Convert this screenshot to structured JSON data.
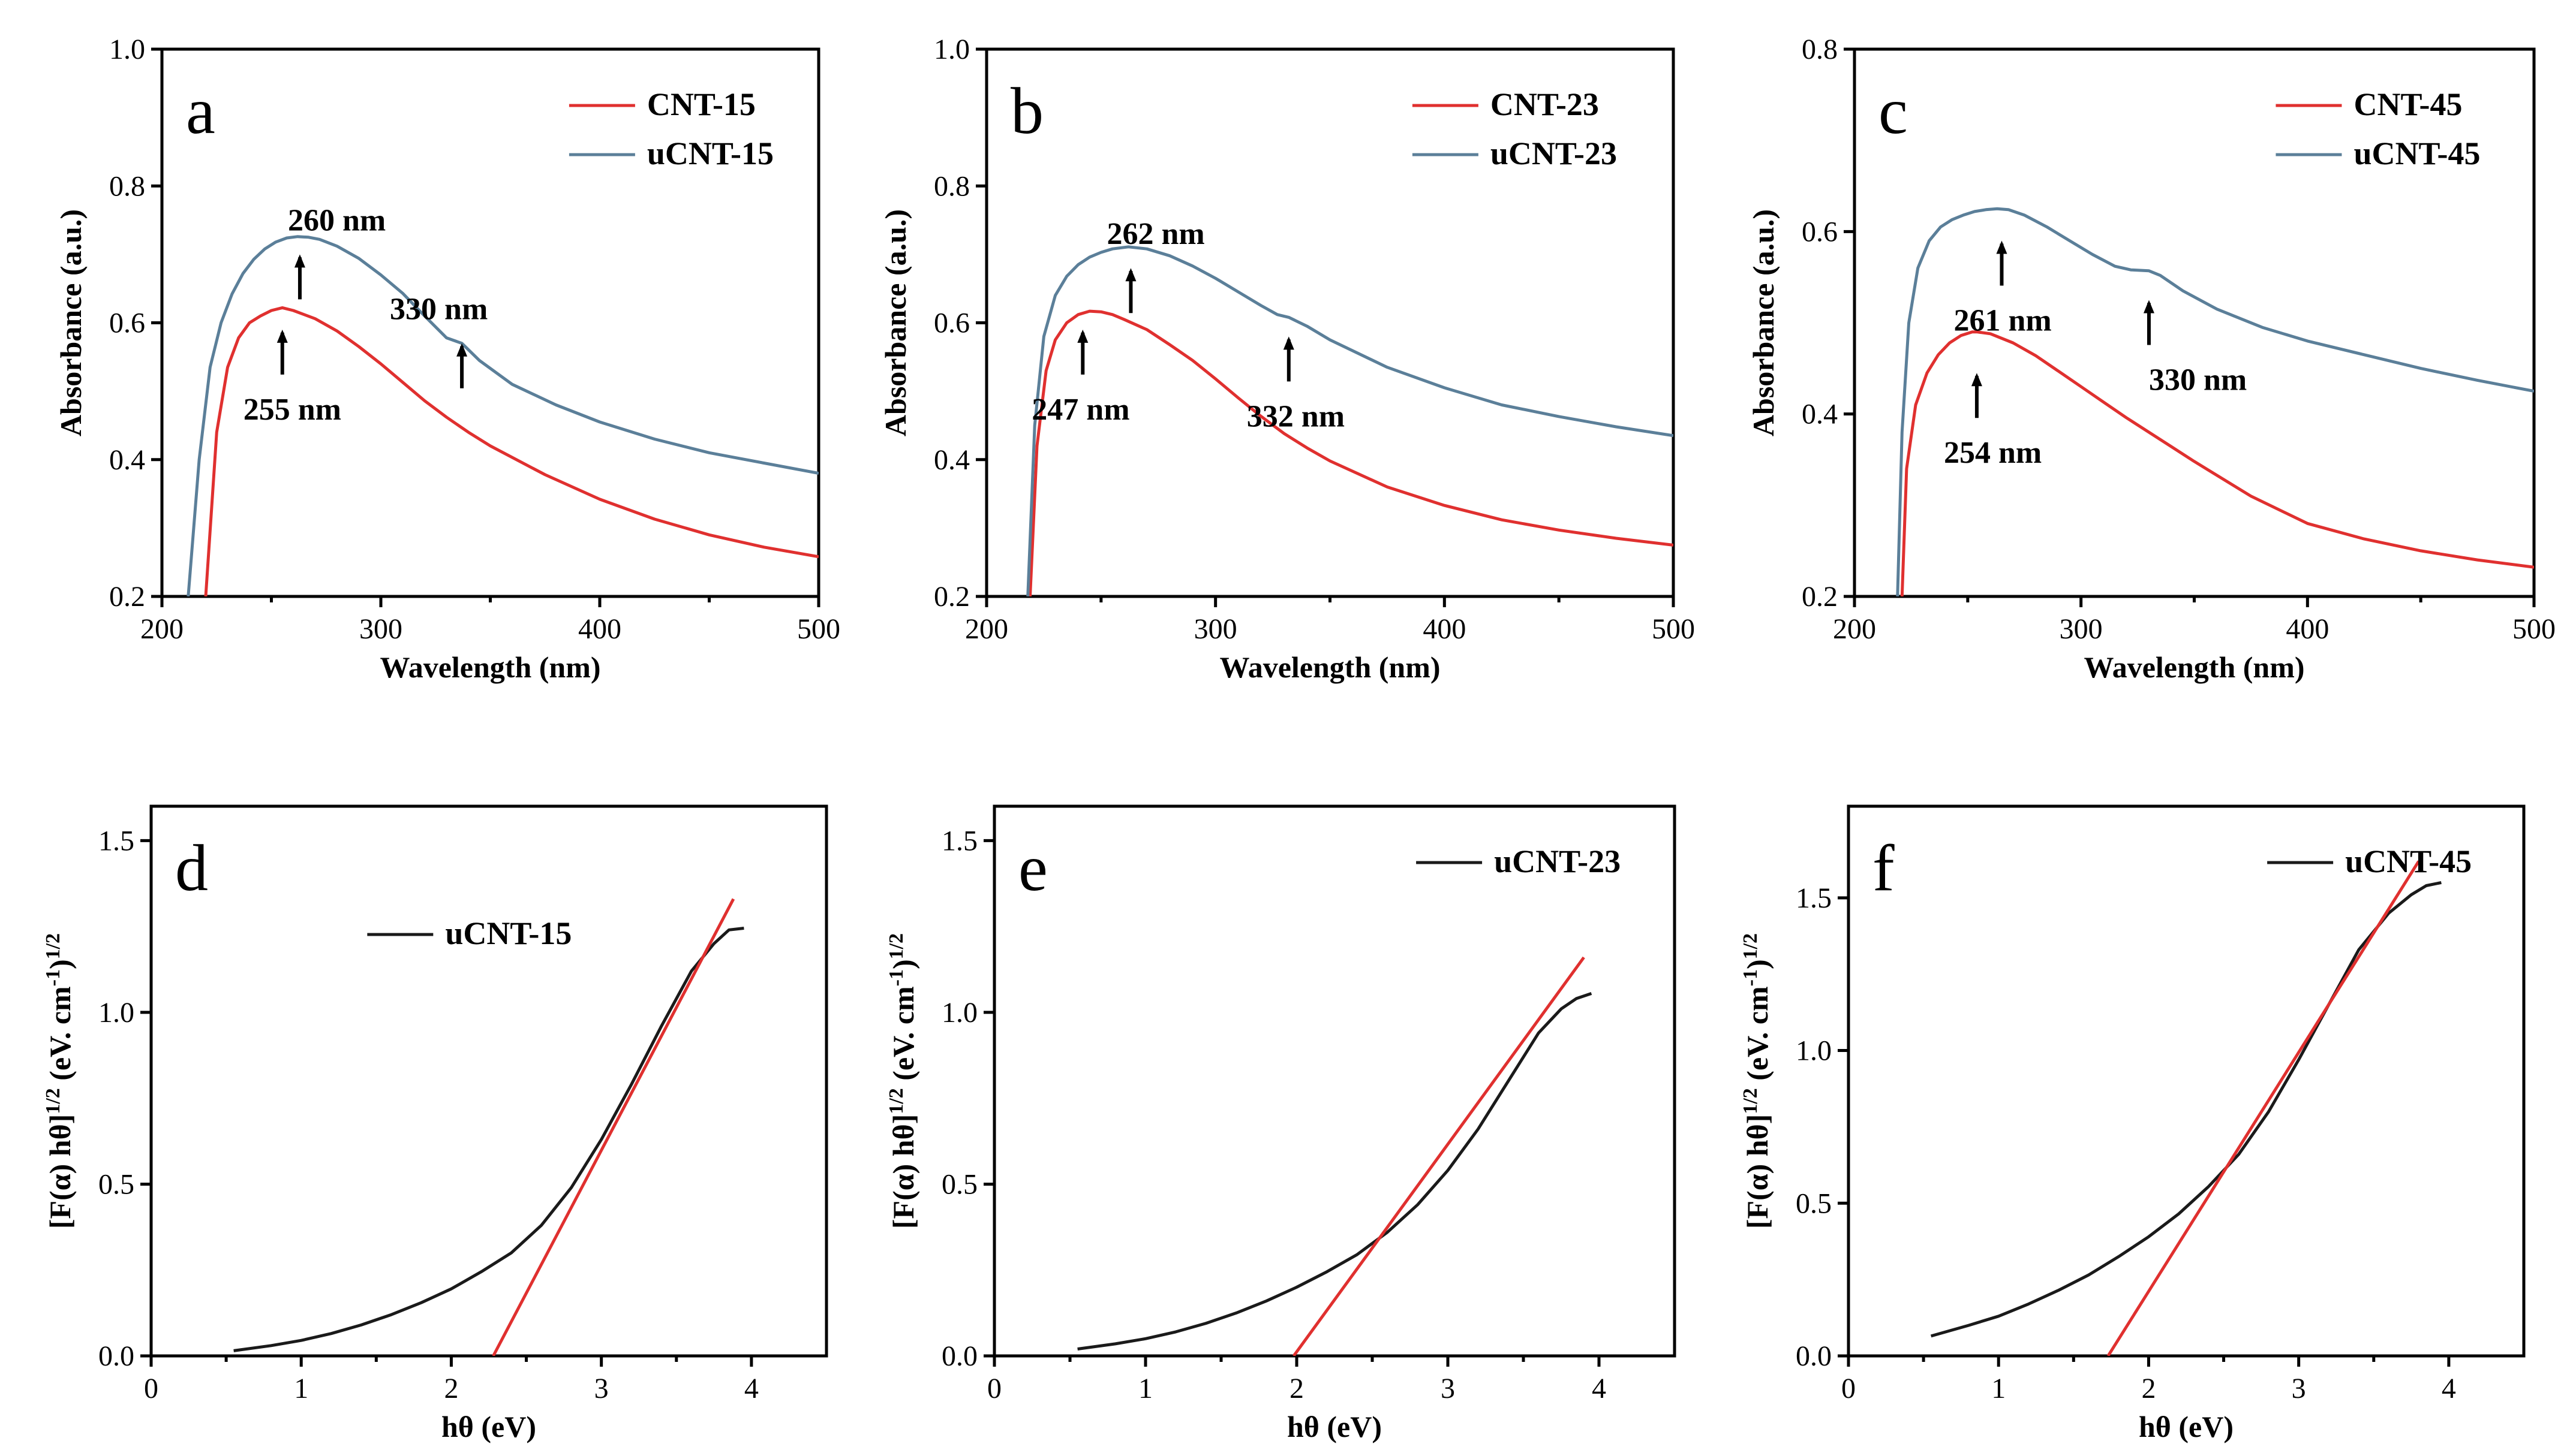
{
  "chart_data": [
    {
      "type": "line",
      "panel": "a",
      "xlabel": "Wavelength (nm)",
      "ylabel": "Absorbance (a.u.)",
      "xlim": [
        200,
        500
      ],
      "ylim": [
        0.2,
        1.0
      ],
      "xticks": [
        200,
        300,
        400,
        500
      ],
      "yticks": [
        0.2,
        0.4,
        0.6,
        0.8,
        1.0
      ],
      "legend": "top-right",
      "series": [
        {
          "name": "CNT-15",
          "color": "#e0302f",
          "x": [
            220,
            225,
            230,
            235,
            240,
            245,
            250,
            255,
            260,
            270,
            280,
            290,
            300,
            310,
            320,
            330,
            340,
            350,
            375,
            400,
            425,
            450,
            475,
            500
          ],
          "y": [
            0.2,
            0.44,
            0.535,
            0.578,
            0.6,
            0.61,
            0.618,
            0.622,
            0.618,
            0.606,
            0.588,
            0.565,
            0.54,
            0.513,
            0.486,
            0.462,
            0.44,
            0.42,
            0.378,
            0.342,
            0.313,
            0.29,
            0.272,
            0.258
          ]
        },
        {
          "name": "uCNT-15",
          "color": "#5b7f99",
          "x": [
            212,
            217,
            222,
            227,
            232,
            237,
            242,
            247,
            252,
            257,
            262,
            267,
            272,
            280,
            290,
            300,
            310,
            320,
            330,
            337,
            345,
            360,
            380,
            400,
            425,
            450,
            475,
            500
          ],
          "y": [
            0.2,
            0.4,
            0.535,
            0.6,
            0.642,
            0.672,
            0.693,
            0.708,
            0.718,
            0.724,
            0.726,
            0.725,
            0.722,
            0.712,
            0.694,
            0.67,
            0.643,
            0.61,
            0.578,
            0.57,
            0.545,
            0.51,
            0.48,
            0.455,
            0.43,
            0.41,
            0.395,
            0.38
          ]
        }
      ],
      "annotations": [
        "260 nm",
        "330 nm",
        "255 nm"
      ]
    },
    {
      "type": "line",
      "panel": "b",
      "xlabel": "Wavelength (nm)",
      "ylabel": "Absorbance (a.u.)",
      "xlim": [
        200,
        500
      ],
      "ylim": [
        0.2,
        1.0
      ],
      "xticks": [
        200,
        300,
        400,
        500
      ],
      "yticks": [
        0.2,
        0.4,
        0.6,
        0.8,
        1.0
      ],
      "legend": "top-right",
      "series": [
        {
          "name": "CNT-23",
          "color": "#e0302f",
          "x": [
            219,
            222,
            226,
            230,
            235,
            240,
            245,
            250,
            255,
            260,
            270,
            280,
            290,
            300,
            310,
            320,
            330,
            340,
            350,
            375,
            400,
            425,
            450,
            475,
            500
          ],
          "y": [
            0.2,
            0.42,
            0.53,
            0.575,
            0.6,
            0.612,
            0.617,
            0.616,
            0.612,
            0.605,
            0.59,
            0.568,
            0.545,
            0.518,
            0.49,
            0.463,
            0.438,
            0.417,
            0.398,
            0.36,
            0.333,
            0.312,
            0.297,
            0.285,
            0.275
          ]
        },
        {
          "name": "uCNT-23",
          "color": "#5b7f99",
          "x": [
            218,
            221,
            225,
            230,
            235,
            240,
            245,
            250,
            255,
            262,
            270,
            280,
            290,
            300,
            310,
            320,
            327,
            332,
            340,
            350,
            375,
            400,
            425,
            450,
            475,
            500
          ],
          "y": [
            0.2,
            0.45,
            0.58,
            0.64,
            0.668,
            0.685,
            0.696,
            0.703,
            0.708,
            0.711,
            0.708,
            0.698,
            0.683,
            0.665,
            0.645,
            0.625,
            0.612,
            0.608,
            0.595,
            0.575,
            0.535,
            0.505,
            0.48,
            0.463,
            0.448,
            0.435
          ]
        }
      ],
      "annotations": [
        "262 nm",
        "247 nm",
        "332 nm"
      ]
    },
    {
      "type": "line",
      "panel": "c",
      "xlabel": "Wavelength (nm)",
      "ylabel": "Absorbance (a.u.)",
      "xlim": [
        200,
        500
      ],
      "ylim": [
        0.2,
        0.8
      ],
      "xticks": [
        200,
        300,
        400,
        500
      ],
      "yticks": [
        0.2,
        0.4,
        0.6,
        0.8
      ],
      "legend": "top-right",
      "series": [
        {
          "name": "CNT-45",
          "color": "#e0302f",
          "x": [
            221,
            223,
            227,
            232,
            237,
            242,
            247,
            252,
            254,
            260,
            270,
            280,
            290,
            300,
            310,
            320,
            330,
            340,
            350,
            375,
            400,
            425,
            450,
            475,
            500
          ],
          "y": [
            0.2,
            0.34,
            0.41,
            0.445,
            0.465,
            0.478,
            0.486,
            0.49,
            0.49,
            0.488,
            0.478,
            0.464,
            0.447,
            0.43,
            0.413,
            0.396,
            0.38,
            0.364,
            0.348,
            0.31,
            0.28,
            0.263,
            0.25,
            0.24,
            0.232
          ]
        },
        {
          "name": "uCNT-45",
          "color": "#5b7f99",
          "x": [
            219,
            221,
            224,
            228,
            233,
            238,
            243,
            248,
            253,
            258,
            263,
            268,
            275,
            285,
            295,
            305,
            315,
            322,
            330,
            335,
            345,
            360,
            380,
            400,
            425,
            450,
            475,
            500
          ],
          "y": [
            0.2,
            0.38,
            0.5,
            0.56,
            0.59,
            0.605,
            0.613,
            0.618,
            0.622,
            0.624,
            0.625,
            0.624,
            0.618,
            0.605,
            0.59,
            0.575,
            0.562,
            0.558,
            0.557,
            0.552,
            0.535,
            0.515,
            0.495,
            0.48,
            0.465,
            0.45,
            0.437,
            0.425
          ]
        }
      ],
      "annotations": [
        "261 nm",
        "330 nm",
        "254 nm"
      ]
    },
    {
      "type": "line",
      "panel": "d",
      "xlabel": "hθ (eV)",
      "ylabel": "[F(α) hθ]1/2 (eV. cm-1)1/2",
      "xlim": [
        0,
        4.5
      ],
      "ylim": [
        0,
        1.6
      ],
      "xticks": [
        0,
        1,
        2,
        3,
        4
      ],
      "yticks": [
        0.0,
        0.5,
        1.0,
        1.5
      ],
      "legend": "top-left",
      "series": [
        {
          "name": "uCNT-15",
          "color": "#1a1a1a",
          "x": [
            0.55,
            0.8,
            1.0,
            1.2,
            1.4,
            1.6,
            1.8,
            2.0,
            2.2,
            2.4,
            2.6,
            2.8,
            3.0,
            3.2,
            3.4,
            3.6,
            3.75,
            3.85,
            3.95
          ],
          "y": [
            0.015,
            0.03,
            0.045,
            0.065,
            0.09,
            0.12,
            0.155,
            0.195,
            0.245,
            0.3,
            0.38,
            0.49,
            0.63,
            0.79,
            0.96,
            1.12,
            1.2,
            1.24,
            1.245
          ]
        },
        {
          "name": "linear fit",
          "color": "#e0302f",
          "x": [
            2.28,
            3.88
          ],
          "y": [
            0.0,
            1.33
          ]
        }
      ]
    },
    {
      "type": "line",
      "panel": "e",
      "xlabel": "hθ (eV)",
      "ylabel": "[F(α) hθ]1/2 (eV. cm-1)1/2",
      "xlim": [
        0,
        4.5
      ],
      "ylim": [
        0,
        1.6
      ],
      "xticks": [
        0,
        1,
        2,
        3,
        4
      ],
      "yticks": [
        0.0,
        0.5,
        1.0,
        1.5
      ],
      "legend": "top-right",
      "series": [
        {
          "name": "uCNT-23",
          "color": "#1a1a1a",
          "x": [
            0.55,
            0.8,
            1.0,
            1.2,
            1.4,
            1.6,
            1.8,
            2.0,
            2.2,
            2.4,
            2.6,
            2.8,
            3.0,
            3.2,
            3.4,
            3.6,
            3.75,
            3.85,
            3.95
          ],
          "y": [
            0.02,
            0.035,
            0.05,
            0.07,
            0.095,
            0.125,
            0.16,
            0.2,
            0.245,
            0.295,
            0.36,
            0.44,
            0.54,
            0.66,
            0.8,
            0.94,
            1.01,
            1.04,
            1.055
          ]
        },
        {
          "name": "linear fit",
          "color": "#e0302f",
          "x": [
            1.98,
            3.9
          ],
          "y": [
            0.0,
            1.16
          ]
        }
      ]
    },
    {
      "type": "line",
      "panel": "f",
      "xlabel": "hθ (eV)",
      "ylabel": "[F(α) hθ]1/2 (eV. cm-1)1/2",
      "xlim": [
        0,
        4.5
      ],
      "ylim": [
        0,
        1.8
      ],
      "xticks": [
        0,
        1,
        2,
        3,
        4
      ],
      "yticks": [
        0.0,
        0.5,
        1.0,
        1.5
      ],
      "legend": "top-right",
      "series": [
        {
          "name": "uCNT-45",
          "color": "#1a1a1a",
          "x": [
            0.55,
            0.8,
            1.0,
            1.2,
            1.4,
            1.6,
            1.8,
            2.0,
            2.2,
            2.4,
            2.6,
            2.8,
            3.0,
            3.2,
            3.4,
            3.6,
            3.75,
            3.85,
            3.95
          ],
          "y": [
            0.065,
            0.1,
            0.13,
            0.17,
            0.215,
            0.265,
            0.325,
            0.39,
            0.465,
            0.555,
            0.66,
            0.8,
            0.97,
            1.15,
            1.33,
            1.45,
            1.51,
            1.54,
            1.55
          ]
        },
        {
          "name": "linear fit",
          "color": "#e0302f",
          "x": [
            1.73,
            3.8
          ],
          "y": [
            0.0,
            1.62
          ]
        }
      ]
    }
  ]
}
